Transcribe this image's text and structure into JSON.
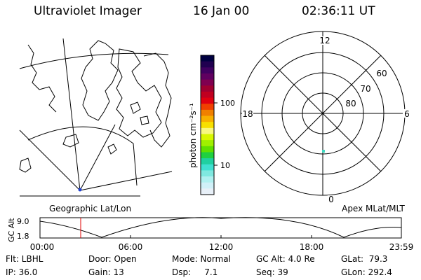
{
  "header": {
    "title": "Ultraviolet Imager",
    "date": "16 Jan 00",
    "time": "02:36:11 UT"
  },
  "map": {
    "caption": "Geographic Lat/Lon"
  },
  "colorbar": {
    "unit_label": "photon cm⁻²s⁻¹",
    "ticks": [
      "100",
      "10"
    ],
    "colors": [
      "#000040",
      "#200050",
      "#400060",
      "#600060",
      "#800050",
      "#a00030",
      "#c00020",
      "#e00010",
      "#f04000",
      "#f08000",
      "#f8b000",
      "#f8e000",
      "#f8f880",
      "#d8f800",
      "#a0f000",
      "#60e000",
      "#20d040",
      "#20d0a0",
      "#40e0d0",
      "#80e8e0",
      "#b0f0f0",
      "#d0f0f8",
      "#e8f0f8"
    ]
  },
  "polar": {
    "caption": "Apex MLat/MLT",
    "mlt_labels": {
      "top": "12",
      "bottom": "0",
      "left": "18",
      "right": "6"
    },
    "lat_labels": [
      "60",
      "70",
      "80"
    ],
    "spot_color": "#40d8c0"
  },
  "altitude_plot": {
    "ylabel": "GC Alt",
    "yticks": [
      "9.0",
      "1.8"
    ],
    "xticks": [
      "00:00",
      "06:00",
      "12:00",
      "18:00",
      "23:59"
    ],
    "marker_color": "#e00000"
  },
  "status": {
    "row1": {
      "flt": "Flt: LBHL",
      "door": "Door: Open",
      "mode": "Mode: Normal",
      "gc_alt": "GC Alt: 4.0 Re",
      "glat": "GLat:  79.3"
    },
    "row2": {
      "ip": "IP: 36.0",
      "gain": "Gain: 13",
      "dsp": "Dsp:     7.1",
      "seq": "Seq: 39",
      "glon": "GLon: 292.4"
    }
  }
}
